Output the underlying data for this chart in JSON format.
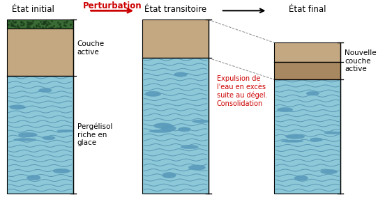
{
  "title_top": [
    "État initial",
    "Perturbation",
    "État transitoire",
    "État final"
  ],
  "title_top_colors": [
    "black",
    "#cc0000",
    "black",
    "black"
  ],
  "arrow1_color": "#cc0000",
  "arrow2_color": "black",
  "bg_color": "#ffffff",
  "green_color": "#3a6b35",
  "sand_color": "#c4a882",
  "sand_dark_color": "#a88860",
  "ice_color": "#8cc8d8",
  "ice_stripe_color": "#4a88aa",
  "ice_lens_color": "#5a9abb",
  "label_couche_active": "Couche\nactive",
  "label_pergelisol": "Pergélisol\nriche en\nglace",
  "label_expulsion": "Expulsion de\nl'eau en excès\nsuite au dégel.\nConsolidation",
  "label_nouvelle": "Nouvelle\ncouche\nactive",
  "font_size_title": 8.5,
  "font_size_label": 7.5
}
